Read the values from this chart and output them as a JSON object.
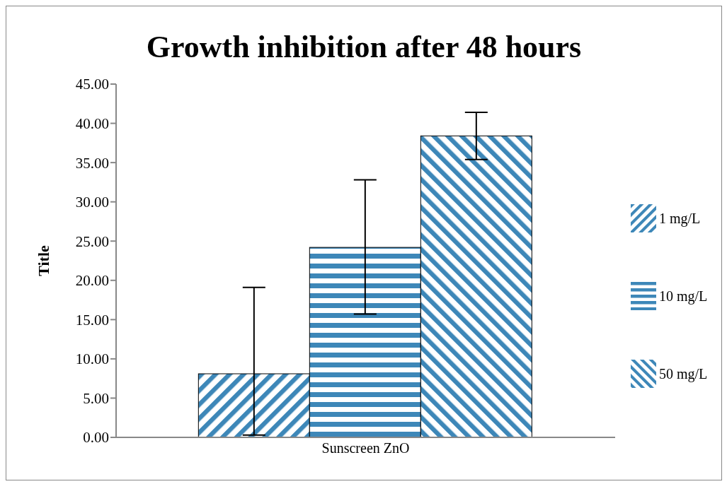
{
  "chart_data": {
    "type": "bar",
    "title": "Growth inhibition after 48 hours",
    "ylabel": "Title",
    "categories": [
      "Sunscreen ZnO"
    ],
    "series": [
      {
        "name": "1 mg/L",
        "color": "#3d87b8",
        "values": [
          8.1
        ],
        "errors": [
          [
            0.3,
            19.1
          ]
        ]
      },
      {
        "name": "10 mg/L",
        "color": "#3d87b8",
        "values": [
          24.2
        ],
        "errors": [
          [
            15.7,
            32.8
          ]
        ]
      },
      {
        "name": "50 mg/L",
        "color": "#3d87b8",
        "values": [
          38.4
        ],
        "errors": [
          [
            35.4,
            41.4
          ]
        ]
      }
    ],
    "ylim": [
      0,
      45
    ],
    "yticks": [
      {
        "value": 0,
        "label": "0.00"
      },
      {
        "value": 5,
        "label": "5.00"
      },
      {
        "value": 10,
        "label": "10.00"
      },
      {
        "value": 15,
        "label": "15.00"
      },
      {
        "value": 20,
        "label": "20.00"
      },
      {
        "value": 25,
        "label": "25.00"
      },
      {
        "value": 30,
        "label": "30.00"
      },
      {
        "value": 35,
        "label": "35.00"
      },
      {
        "value": 40,
        "label": "40.00"
      },
      {
        "value": 45,
        "label": "45.00"
      }
    ],
    "grid": false,
    "legend": "right"
  }
}
